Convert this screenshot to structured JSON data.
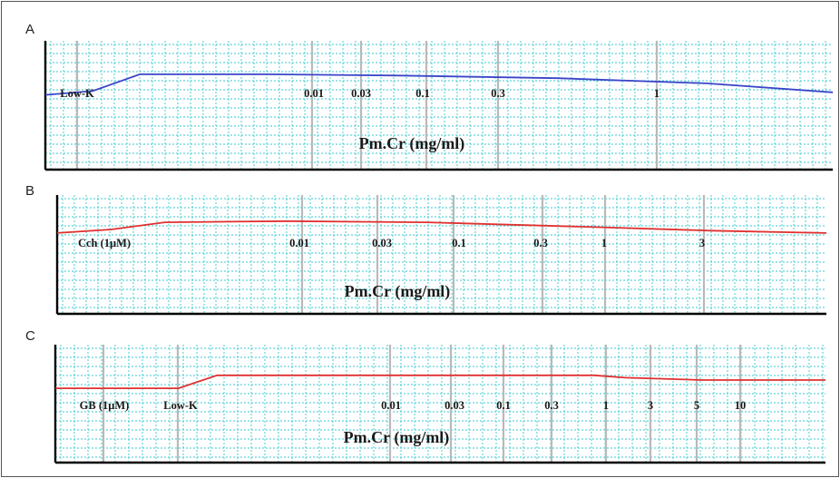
{
  "chart_data": [
    {
      "type": "line",
      "panel": "A",
      "xlabel": "Pm.Cr (mg/ml)",
      "trace_color": "#3a45c8",
      "annotations": [
        "Low-K",
        "0.01",
        "0.03",
        "0.1",
        "0.3",
        "1"
      ],
      "x": [
        0,
        6,
        12,
        28,
        45,
        65,
        84,
        100
      ],
      "y": [
        0.58,
        0.61,
        0.74,
        0.74,
        0.73,
        0.71,
        0.67,
        0.6
      ],
      "ylim": [
        0,
        1
      ]
    },
    {
      "type": "line",
      "panel": "B",
      "xlabel": "Pm.Cr (mg/ml)",
      "trace_color": "#e03030",
      "annotations": [
        "Cch (1μM)",
        "0.01",
        "0.03",
        "0.1",
        "0.3",
        "1",
        "3"
      ],
      "x": [
        0,
        7,
        14,
        30,
        48,
        70,
        85,
        100
      ],
      "y": [
        0.68,
        0.71,
        0.77,
        0.78,
        0.77,
        0.73,
        0.7,
        0.68
      ],
      "ylim": [
        0,
        1
      ]
    },
    {
      "type": "line",
      "panel": "C",
      "xlabel": "Pm.Cr (mg/ml)",
      "trace_color": "#e03030",
      "annotations": [
        "GB (1μM)",
        "Low-K",
        "0.01",
        "0.03",
        "0.1",
        "0.3",
        "1",
        "3",
        "5",
        "10"
      ],
      "x": [
        0,
        16,
        21,
        40,
        70,
        74,
        84,
        100
      ],
      "y": [
        0.63,
        0.63,
        0.74,
        0.74,
        0.74,
        0.72,
        0.7,
        0.7
      ],
      "ylim": [
        0,
        1
      ]
    }
  ]
}
